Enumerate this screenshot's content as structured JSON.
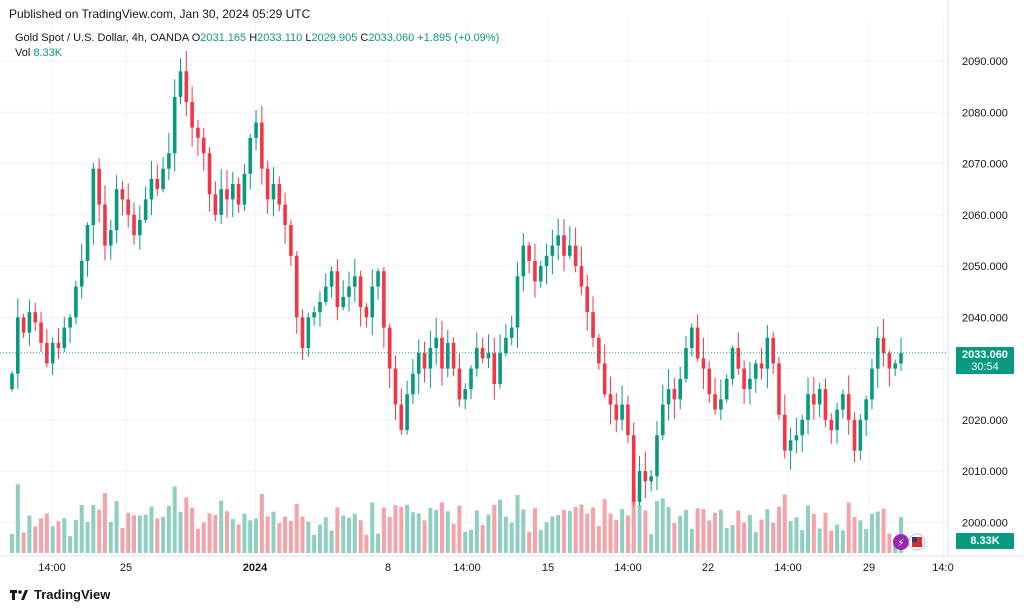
{
  "header": {
    "published": "Published on TradingView.com, Jan 30, 2024 05:29 UTC"
  },
  "legend": {
    "symbol": "Gold Spot / U.S. Dollar, 4h, OANDA",
    "o_label": "O",
    "o_value": "2031.165",
    "h_label": "H",
    "h_value": "2033.110",
    "l_label": "L",
    "l_value": "2029.905",
    "c_label": "C",
    "c_value": "2033.060",
    "change": "+1.895 (+0.09%)",
    "vol_label": "Vol",
    "vol_value": "8.33K"
  },
  "price_tag": {
    "price": "2033.060",
    "countdown": "30:54"
  },
  "volume_tag": {
    "value": "8.33K"
  },
  "footer": {
    "brand": "TradingView"
  },
  "colors": {
    "up": "#089981",
    "down": "#f23645",
    "vol_up": "#8fcfc1",
    "vol_down": "#f5a3a8",
    "grid": "#f0f3fa",
    "axis_text": "#131722"
  },
  "chart_data": {
    "type": "candlestick",
    "title": "Gold Spot / U.S. Dollar, 4h, OANDA",
    "ylim": [
      1995,
      2098
    ],
    "y_ticks": [
      "2000.000",
      "2010.000",
      "2020.000",
      "2030.000",
      "2040.000",
      "2050.000",
      "2060.000",
      "2070.000",
      "2080.000",
      "2090.000"
    ],
    "x_ticks": [
      "14:00",
      "25",
      "2024",
      "8",
      "14:00",
      "15",
      "14:00",
      "22",
      "14:00",
      "29",
      "14:0"
    ],
    "last_price": 2033.06,
    "closes": [
      2029,
      2040,
      2037,
      2041,
      2039,
      2035,
      2031,
      2035,
      2034,
      2038,
      2040,
      2046,
      2051,
      2058,
      2069,
      2062,
      2054,
      2057,
      2065,
      2063,
      2060,
      2056,
      2059,
      2063,
      2067,
      2065,
      2069,
      2072,
      2083,
      2088,
      2082,
      2077,
      2075,
      2072,
      2064,
      2060,
      2065,
      2063,
      2066,
      2062,
      2068,
      2075,
      2078,
      2069,
      2063,
      2066,
      2062,
      2058,
      2052,
      2040,
      2034,
      2040,
      2041,
      2043,
      2046,
      2049,
      2042,
      2044,
      2046,
      2048,
      2042,
      2040,
      2046,
      2049,
      2038,
      2030,
      2023,
      2018,
      2025,
      2029,
      2033,
      2030,
      2034,
      2036,
      2030,
      2035,
      2030,
      2024,
      2026,
      2030,
      2034,
      2032,
      2033,
      2027,
      2033,
      2036,
      2038,
      2048,
      2054,
      2051,
      2047,
      2050,
      2052,
      2054,
      2056,
      2052,
      2054,
      2050,
      2046,
      2041,
      2036,
      2031,
      2025,
      2023,
      2020,
      2023,
      2017,
      2004,
      2010,
      2008,
      2009,
      2017,
      2023,
      2026,
      2024,
      2028,
      2034,
      2038,
      2032,
      2030,
      2025,
      2022,
      2024,
      2028,
      2034,
      2030,
      2026,
      2028,
      2031,
      2030,
      2036,
      2031,
      2021,
      2014,
      2016,
      2017,
      2020,
      2025,
      2023,
      2026,
      2020,
      2018,
      2022,
      2025,
      2020,
      2014,
      2020,
      2024,
      2030,
      2036,
      2033,
      2030,
      2031,
      2033
    ]
  }
}
